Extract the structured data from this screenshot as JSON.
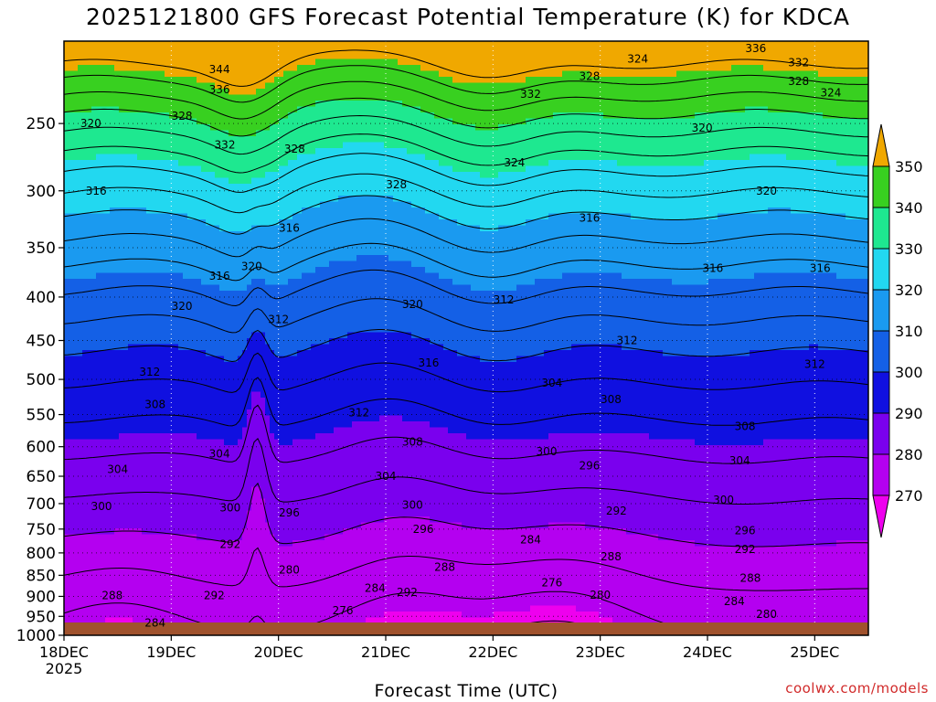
{
  "chart_data": {
    "type": "heatmap",
    "title": "2025121800 GFS Forecast Potential Temperature (K) for KDCA",
    "xlabel": "Forecast Time (UTC)",
    "ylabel": "",
    "credit": "coolwx.com/models",
    "x_ticks": [
      "18DEC",
      "19DEC",
      "20DEC",
      "21DEC",
      "22DEC",
      "23DEC",
      "24DEC",
      "25DEC"
    ],
    "x_year": "2025",
    "x_range_days": [
      0,
      7.5
    ],
    "y_ticks": [
      250,
      300,
      350,
      400,
      450,
      500,
      550,
      600,
      650,
      700,
      750,
      800,
      850,
      900,
      950,
      1000
    ],
    "y_range_hpa": [
      200,
      1000
    ],
    "y_scale": "log-pressure",
    "grid": true,
    "colorbar": {
      "levels": [
        270,
        280,
        290,
        300,
        310,
        320,
        330,
        340,
        350
      ],
      "colors": [
        "#ee00ee",
        "#b400f0",
        "#7a00ee",
        "#1010e0",
        "#1460e6",
        "#1a9af0",
        "#22d8f0",
        "#1ee890",
        "#38d020",
        "#e6f020",
        "#f0a800"
      ]
    },
    "contour_interval_K": 4,
    "terrain_color": "#a0522d",
    "contour_labels": [
      {
        "t": 0.25,
        "p": 250,
        "v": "320"
      },
      {
        "t": 0.3,
        "p": 300,
        "v": "316"
      },
      {
        "t": 1.1,
        "p": 245,
        "v": "328"
      },
      {
        "t": 1.45,
        "p": 216,
        "v": "344"
      },
      {
        "t": 1.45,
        "p": 228,
        "v": "336"
      },
      {
        "t": 1.5,
        "p": 265,
        "v": "332"
      },
      {
        "t": 2.15,
        "p": 268,
        "v": "328"
      },
      {
        "t": 1.75,
        "p": 368,
        "v": "320"
      },
      {
        "t": 2.1,
        "p": 332,
        "v": "316"
      },
      {
        "t": 1.45,
        "p": 378,
        "v": "316"
      },
      {
        "t": 1.1,
        "p": 410,
        "v": "320"
      },
      {
        "t": 2.0,
        "p": 425,
        "v": "312"
      },
      {
        "t": 0.8,
        "p": 490,
        "v": "312"
      },
      {
        "t": 0.85,
        "p": 535,
        "v": "308"
      },
      {
        "t": 0.5,
        "p": 638,
        "v": "304"
      },
      {
        "t": 0.35,
        "p": 705,
        "v": "300"
      },
      {
        "t": 1.45,
        "p": 612,
        "v": "304"
      },
      {
        "t": 1.55,
        "p": 708,
        "v": "300"
      },
      {
        "t": 1.55,
        "p": 782,
        "v": "292"
      },
      {
        "t": 2.1,
        "p": 718,
        "v": "296"
      },
      {
        "t": 2.1,
        "p": 838,
        "v": "280"
      },
      {
        "t": 1.4,
        "p": 898,
        "v": "292"
      },
      {
        "t": 0.45,
        "p": 898,
        "v": "288"
      },
      {
        "t": 0.85,
        "p": 967,
        "v": "284"
      },
      {
        "t": 3.1,
        "p": 295,
        "v": "328"
      },
      {
        "t": 3.25,
        "p": 408,
        "v": "320"
      },
      {
        "t": 3.4,
        "p": 478,
        "v": "316"
      },
      {
        "t": 2.75,
        "p": 547,
        "v": "312"
      },
      {
        "t": 3.25,
        "p": 592,
        "v": "308"
      },
      {
        "t": 3.0,
        "p": 650,
        "v": "304"
      },
      {
        "t": 3.25,
        "p": 703,
        "v": "300"
      },
      {
        "t": 3.35,
        "p": 750,
        "v": "296"
      },
      {
        "t": 3.55,
        "p": 832,
        "v": "288"
      },
      {
        "t": 2.9,
        "p": 880,
        "v": "284"
      },
      {
        "t": 3.2,
        "p": 890,
        "v": "292"
      },
      {
        "t": 2.6,
        "p": 935,
        "v": "276"
      },
      {
        "t": 4.2,
        "p": 278,
        "v": "324"
      },
      {
        "t": 4.35,
        "p": 231,
        "v": "332"
      },
      {
        "t": 4.1,
        "p": 403,
        "v": "312"
      },
      {
        "t": 4.55,
        "p": 505,
        "v": "304"
      },
      {
        "t": 4.5,
        "p": 608,
        "v": "300"
      },
      {
        "t": 4.35,
        "p": 772,
        "v": "284"
      },
      {
        "t": 4.55,
        "p": 867,
        "v": "276"
      },
      {
        "t": 5.0,
        "p": 897,
        "v": "280"
      },
      {
        "t": 4.9,
        "p": 632,
        "v": "296"
      },
      {
        "t": 5.15,
        "p": 714,
        "v": "292"
      },
      {
        "t": 5.1,
        "p": 808,
        "v": "288"
      },
      {
        "t": 5.1,
        "p": 528,
        "v": "308"
      },
      {
        "t": 5.25,
        "p": 450,
        "v": "312"
      },
      {
        "t": 4.9,
        "p": 323,
        "v": "316"
      },
      {
        "t": 4.9,
        "p": 220,
        "v": "328"
      },
      {
        "t": 5.35,
        "p": 210,
        "v": "324"
      },
      {
        "t": 5.95,
        "p": 253,
        "v": "320"
      },
      {
        "t": 6.05,
        "p": 370,
        "v": "316"
      },
      {
        "t": 6.35,
        "p": 568,
        "v": "308"
      },
      {
        "t": 6.3,
        "p": 623,
        "v": "304"
      },
      {
        "t": 6.15,
        "p": 693,
        "v": "300"
      },
      {
        "t": 6.35,
        "p": 753,
        "v": "296"
      },
      {
        "t": 6.35,
        "p": 792,
        "v": "292"
      },
      {
        "t": 6.4,
        "p": 857,
        "v": "288"
      },
      {
        "t": 6.25,
        "p": 912,
        "v": "284"
      },
      {
        "t": 6.55,
        "p": 945,
        "v": "280"
      },
      {
        "t": 7.0,
        "p": 480,
        "v": "312"
      },
      {
        "t": 7.05,
        "p": 370,
        "v": "316"
      },
      {
        "t": 6.55,
        "p": 300,
        "v": "320"
      },
      {
        "t": 7.15,
        "p": 230,
        "v": "324"
      },
      {
        "t": 6.85,
        "p": 223,
        "v": "328"
      },
      {
        "t": 6.85,
        "p": 212,
        "v": "332"
      },
      {
        "t": 6.45,
        "p": 204,
        "v": "336"
      }
    ]
  }
}
